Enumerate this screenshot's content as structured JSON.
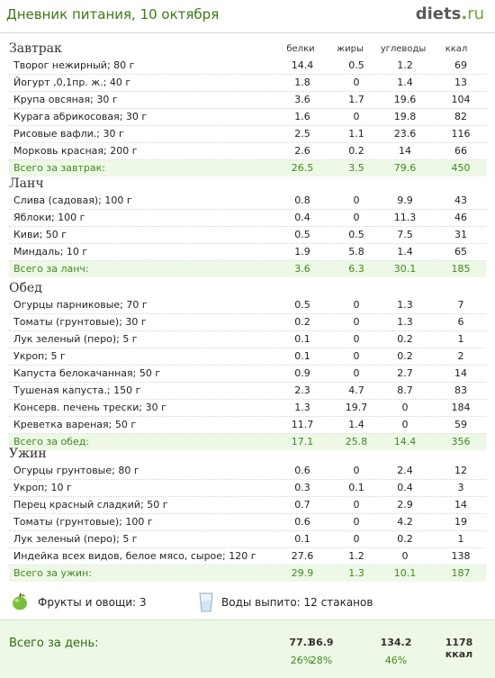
{
  "header": {
    "title": "Дневник питания, 10 октября",
    "logo_main": "diets",
    "logo_dot": ".",
    "logo_tld": "ru"
  },
  "columns": {
    "protein": "белки",
    "fat": "жиры",
    "carbs": "углеводы",
    "kcal": "ккал"
  },
  "sections": [
    {
      "title": "Завтрак",
      "rows": [
        [
          "Творог нежирный; 80 г",
          "14.4",
          "0.5",
          "1.2",
          "69"
        ],
        [
          "Йогурт ,0,1пр. ж.; 40 г",
          "1.8",
          "0",
          "1.4",
          "13"
        ],
        [
          "Крупа овсяная; 30 г",
          "3.6",
          "1.7",
          "19.6",
          "104"
        ],
        [
          "Курага абрикосовая; 30 г",
          "1.6",
          "0",
          "19.8",
          "82"
        ],
        [
          "Рисовые вафли.; 30 г",
          "2.5",
          "1.1",
          "23.6",
          "116"
        ],
        [
          "Морковь красная; 200 г",
          "2.6",
          "0.2",
          "14",
          "66"
        ]
      ],
      "total": [
        "Всего за завтрак:",
        "26.5",
        "3.5",
        "79.6",
        "450"
      ]
    },
    {
      "title": "Ланч",
      "rows": [
        [
          "Слива (садовая); 100 г",
          "0.8",
          "0",
          "9.9",
          "43"
        ],
        [
          "Яблоки; 100 г",
          "0.4",
          "0",
          "11.3",
          "46"
        ],
        [
          "Киви; 50 г",
          "0.5",
          "0.5",
          "7.5",
          "31"
        ],
        [
          "Миндаль; 10 г",
          "1.9",
          "5.8",
          "1.4",
          "65"
        ]
      ],
      "total": [
        "Всего за ланч:",
        "3.6",
        "6.3",
        "30.1",
        "185"
      ]
    },
    {
      "title": "Обед",
      "rows": [
        [
          "Огурцы парниковые; 70 г",
          "0.5",
          "0",
          "1.3",
          "7"
        ],
        [
          "Томаты (грунтовые); 30 г",
          "0.2",
          "0",
          "1.3",
          "6"
        ],
        [
          "Лук зеленый (перо); 5 г",
          "0.1",
          "0",
          "0.2",
          "1"
        ],
        [
          "Укроп; 5 г",
          "0.1",
          "0",
          "0.2",
          "2"
        ],
        [
          "Капуста белокачанная; 50 г",
          "0.9",
          "0",
          "2.7",
          "14"
        ],
        [
          "Тушеная капуста.; 150 г",
          "2.3",
          "4.7",
          "8.7",
          "83"
        ],
        [
          "Консерв. печень трески; 30 г",
          "1.3",
          "19.7",
          "0",
          "184"
        ],
        [
          "Креветка вареная; 50 г",
          "11.7",
          "1.4",
          "0",
          "59"
        ]
      ],
      "total": [
        "Всего за обед:",
        "17.1",
        "25.8",
        "14.4",
        "356"
      ]
    },
    {
      "title": "Ужин",
      "rows": [
        [
          "Огурцы грунтовые; 80 г",
          "0.6",
          "0",
          "2.4",
          "12"
        ],
        [
          "Укроп; 10 г",
          "0.3",
          "0.1",
          "0.4",
          "3"
        ],
        [
          "Перец красный сладкий; 50 г",
          "0.7",
          "0",
          "2.9",
          "14"
        ],
        [
          "Томаты (грунтовые); 100 г",
          "0.6",
          "0",
          "4.2",
          "19"
        ],
        [
          "Лук зеленый (перо); 5 г",
          "0.1",
          "0",
          "0.2",
          "1"
        ],
        [
          "Индейка всех видов, белое мясо, сырое; 120 г",
          "27.6",
          "1.2",
          "0",
          "138"
        ]
      ],
      "total": [
        "Всего за ужин:",
        "29.9",
        "1.3",
        "10.1",
        "187"
      ]
    }
  ],
  "stats": {
    "fruits": "Фрукты и овощи: 3",
    "water": "Воды выпито: 12 стаканов"
  },
  "day": {
    "label": "Всего за день:",
    "protein": "77.1",
    "fat": "36.9",
    "carbs": "134.2",
    "kcal": "1178 ккал",
    "protein_pct": "26%",
    "fat_pct": "28%",
    "carbs_pct": "46%"
  },
  "colors": {
    "accent_green": "#3c7a16",
    "total_bg": "#eef8e6"
  },
  "icons": {
    "fruits": "apple-icon",
    "water": "water-glass-icon"
  }
}
